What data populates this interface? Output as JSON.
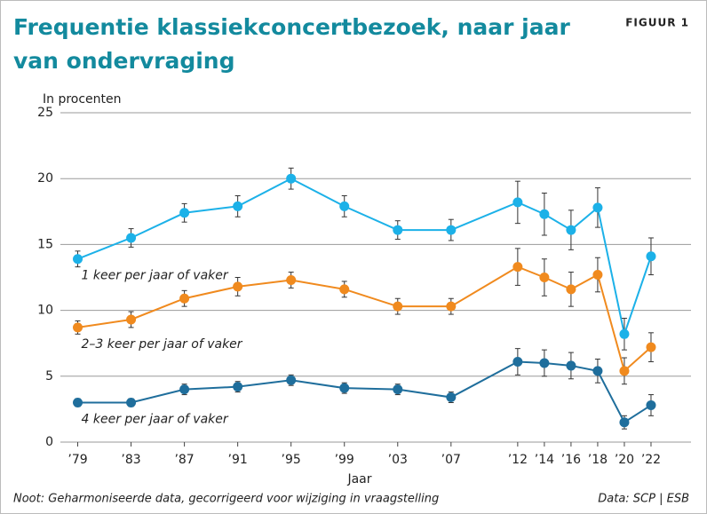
{
  "chart_data": {
    "type": "line",
    "title": "Frequentie klassiekconcertbezoek, naar jaar van ondervraging",
    "figure_label": "FIGUUR 1",
    "ylabel": "In procenten",
    "xlabel": "Jaar",
    "note": "Noot: Geharmoniseerde data, gecorrigeerd voor wijziging in vraagstelling",
    "source": "Data: SCP | ESB",
    "x": [
      1979,
      1983,
      1987,
      1991,
      1995,
      1999,
      2003,
      2007,
      2012,
      2014,
      2016,
      2018,
      2020,
      2022
    ],
    "xlim": [
      1977.7,
      2025
    ],
    "xticks": [
      {
        "value": 1979,
        "label": "’79"
      },
      {
        "value": 1983,
        "label": "’83"
      },
      {
        "value": 1987,
        "label": "’87"
      },
      {
        "value": 1991,
        "label": "’91"
      },
      {
        "value": 1995,
        "label": "’95"
      },
      {
        "value": 1999,
        "label": "’99"
      },
      {
        "value": 2003,
        "label": "’03"
      },
      {
        "value": 2007,
        "label": "’07"
      },
      {
        "value": 2012,
        "label": "’12"
      },
      {
        "value": 2014,
        "label": "’14"
      },
      {
        "value": 2016,
        "label": "’16"
      },
      {
        "value": 2018,
        "label": "’18"
      },
      {
        "value": 2020,
        "label": "’20"
      },
      {
        "value": 2022,
        "label": "’22"
      }
    ],
    "ylim": [
      0,
      25
    ],
    "yticks": [
      0,
      5,
      10,
      15,
      20,
      25
    ],
    "grid": true,
    "series": [
      {
        "name": "1 keer per jaar of vaker",
        "color": "#1cb1e8",
        "values": [
          13.9,
          15.5,
          17.4,
          17.9,
          20.0,
          17.9,
          16.1,
          16.1,
          18.2,
          17.3,
          16.1,
          17.8,
          8.2,
          14.1
        ],
        "errors": [
          0.6,
          0.7,
          0.7,
          0.8,
          0.8,
          0.8,
          0.7,
          0.8,
          1.6,
          1.6,
          1.5,
          1.5,
          1.2,
          1.4
        ]
      },
      {
        "name": "2–3 keer per jaar of vaker",
        "color": "#f08a1e",
        "values": [
          8.7,
          9.3,
          10.9,
          11.8,
          12.3,
          11.6,
          10.3,
          10.3,
          13.3,
          12.5,
          11.6,
          12.7,
          5.4,
          7.2
        ],
        "errors": [
          0.5,
          0.6,
          0.6,
          0.7,
          0.6,
          0.6,
          0.6,
          0.6,
          1.4,
          1.4,
          1.3,
          1.3,
          1.0,
          1.1
        ]
      },
      {
        "name": "4 keer per jaar of vaker",
        "color": "#1f6e9c",
        "values": [
          3.0,
          3.0,
          4.0,
          4.2,
          4.7,
          4.1,
          4.0,
          3.4,
          6.1,
          6.0,
          5.8,
          5.4,
          1.5,
          2.8
        ],
        "errors": [
          0.3,
          0.3,
          0.4,
          0.4,
          0.4,
          0.4,
          0.4,
          0.4,
          1.0,
          1.0,
          1.0,
          0.9,
          0.5,
          0.8
        ]
      }
    ]
  }
}
